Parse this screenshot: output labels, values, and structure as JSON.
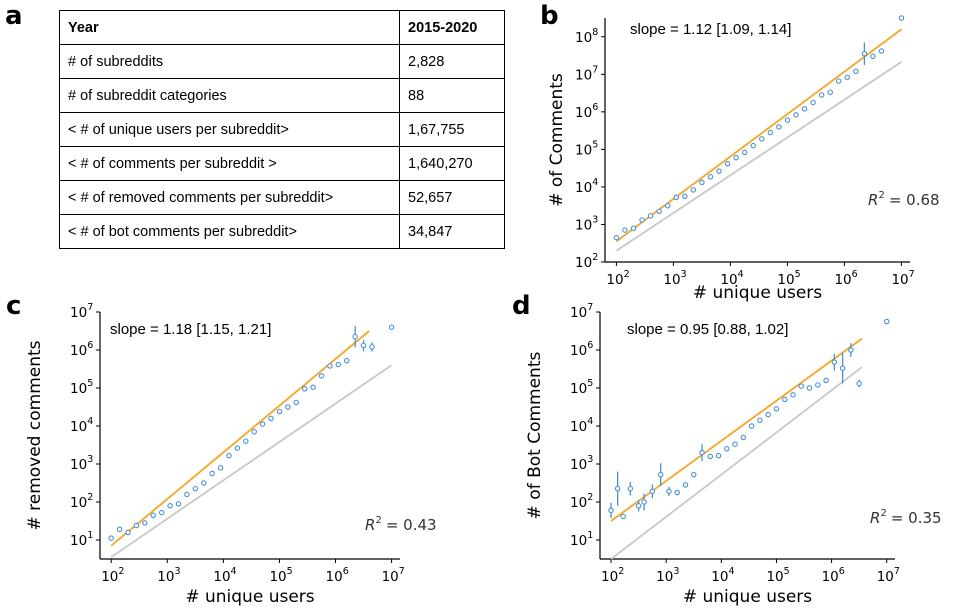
{
  "panel_labels": {
    "a": "a",
    "b": "b",
    "c": "c",
    "d": "d"
  },
  "table": {
    "header": [
      "Year",
      "2015-2020"
    ],
    "rows": [
      [
        "# of subreddits",
        "2,828"
      ],
      [
        "# of subreddit categories",
        "88"
      ],
      [
        "< # of unique users per subreddit>",
        "1,67,755"
      ],
      [
        "< # of comments per subreddit >",
        "1,640,270"
      ],
      [
        "< # of removed comments per subreddit>",
        "52,657"
      ],
      [
        "< # of bot comments per subreddit>",
        "34,847"
      ]
    ]
  },
  "colors": {
    "fit": "#f5a623",
    "reference": "#c8c8c8",
    "points": "#4a90d9"
  },
  "chart_data": [
    {
      "id": "b",
      "type": "scatter",
      "scale": "log-log",
      "xlabel": "# unique users",
      "ylabel": "# of Comments",
      "xlim_exp": [
        1.8,
        7.15
      ],
      "ylim_exp": [
        2.0,
        8.5
      ],
      "xticks_exp": [
        2,
        3,
        4,
        5,
        6,
        7
      ],
      "yticks_exp": [
        2,
        3,
        4,
        5,
        6,
        7,
        8
      ],
      "slope_text": "slope = 1.12 [1.09, 1.14]",
      "r2_label": "R",
      "r2_value": "= 0.68",
      "fit_line": {
        "x_exp": [
          2.0,
          7.0
        ],
        "y_exp": [
          2.55,
          8.2
        ]
      },
      "ref_line": {
        "x_exp": [
          2.0,
          7.0
        ],
        "y_exp": [
          2.3,
          7.33
        ]
      },
      "points": [
        {
          "x": 2.0,
          "y": 2.65
        },
        {
          "x": 2.15,
          "y": 2.85
        },
        {
          "x": 2.3,
          "y": 2.9
        },
        {
          "x": 2.45,
          "y": 3.12
        },
        {
          "x": 2.6,
          "y": 3.23
        },
        {
          "x": 2.75,
          "y": 3.35
        },
        {
          "x": 2.9,
          "y": 3.5
        },
        {
          "x": 3.05,
          "y": 3.72
        },
        {
          "x": 3.2,
          "y": 3.75
        },
        {
          "x": 3.35,
          "y": 3.92
        },
        {
          "x": 3.5,
          "y": 4.12
        },
        {
          "x": 3.65,
          "y": 4.27
        },
        {
          "x": 3.8,
          "y": 4.42
        },
        {
          "x": 3.95,
          "y": 4.62
        },
        {
          "x": 4.1,
          "y": 4.78
        },
        {
          "x": 4.25,
          "y": 4.92
        },
        {
          "x": 4.4,
          "y": 5.1
        },
        {
          "x": 4.55,
          "y": 5.28
        },
        {
          "x": 4.7,
          "y": 5.45
        },
        {
          "x": 4.85,
          "y": 5.6
        },
        {
          "x": 5.0,
          "y": 5.78
        },
        {
          "x": 5.15,
          "y": 5.92
        },
        {
          "x": 5.3,
          "y": 6.08
        },
        {
          "x": 5.45,
          "y": 6.25
        },
        {
          "x": 5.6,
          "y": 6.45
        },
        {
          "x": 5.75,
          "y": 6.52
        },
        {
          "x": 5.9,
          "y": 6.82
        },
        {
          "x": 6.05,
          "y": 6.92
        },
        {
          "x": 6.2,
          "y": 7.08
        },
        {
          "x": 6.35,
          "y": 7.55,
          "err": 0.3
        },
        {
          "x": 6.5,
          "y": 7.48
        },
        {
          "x": 6.65,
          "y": 7.62
        },
        {
          "x": 7.0,
          "y": 8.5
        }
      ]
    },
    {
      "id": "c",
      "type": "scatter",
      "scale": "log-log",
      "xlabel": "# unique users",
      "ylabel": "# removed comments",
      "xlim_exp": [
        1.8,
        7.15
      ],
      "ylim_exp": [
        0.5,
        7.0
      ],
      "xticks_exp": [
        2,
        3,
        4,
        5,
        6,
        7
      ],
      "yticks_exp": [
        1,
        2,
        3,
        4,
        5,
        6,
        7
      ],
      "slope_text": "slope = 1.18 [1.15, 1.21]",
      "r2_label": "R",
      "r2_value": "= 0.43",
      "fit_line": {
        "x_exp": [
          2.0,
          6.6
        ],
        "y_exp": [
          0.85,
          6.5
        ]
      },
      "ref_line": {
        "x_exp": [
          2.0,
          7.0
        ],
        "y_exp": [
          0.55,
          5.6
        ]
      },
      "points": [
        {
          "x": 2.0,
          "y": 1.05
        },
        {
          "x": 2.15,
          "y": 1.28
        },
        {
          "x": 2.3,
          "y": 1.2
        },
        {
          "x": 2.45,
          "y": 1.38
        },
        {
          "x": 2.6,
          "y": 1.45
        },
        {
          "x": 2.75,
          "y": 1.65
        },
        {
          "x": 2.9,
          "y": 1.72
        },
        {
          "x": 3.05,
          "y": 1.9
        },
        {
          "x": 3.2,
          "y": 1.95
        },
        {
          "x": 3.35,
          "y": 2.2
        },
        {
          "x": 3.5,
          "y": 2.35
        },
        {
          "x": 3.65,
          "y": 2.5
        },
        {
          "x": 3.8,
          "y": 2.75
        },
        {
          "x": 3.95,
          "y": 2.9
        },
        {
          "x": 4.1,
          "y": 3.22
        },
        {
          "x": 4.25,
          "y": 3.42
        },
        {
          "x": 4.4,
          "y": 3.6
        },
        {
          "x": 4.55,
          "y": 3.85
        },
        {
          "x": 4.7,
          "y": 4.05
        },
        {
          "x": 4.85,
          "y": 4.2
        },
        {
          "x": 5.0,
          "y": 4.38
        },
        {
          "x": 5.15,
          "y": 4.5
        },
        {
          "x": 5.3,
          "y": 4.62
        },
        {
          "x": 5.45,
          "y": 4.98
        },
        {
          "x": 5.6,
          "y": 5.02
        },
        {
          "x": 5.75,
          "y": 5.32
        },
        {
          "x": 5.9,
          "y": 5.58
        },
        {
          "x": 6.05,
          "y": 5.62
        },
        {
          "x": 6.2,
          "y": 5.72
        },
        {
          "x": 6.35,
          "y": 6.35,
          "err": 0.28
        },
        {
          "x": 6.5,
          "y": 6.12,
          "err": 0.15
        },
        {
          "x": 6.65,
          "y": 6.08,
          "err": 0.12
        },
        {
          "x": 7.0,
          "y": 6.6
        }
      ]
    },
    {
      "id": "d",
      "type": "scatter",
      "scale": "log-log",
      "xlabel": "# unique users",
      "ylabel": "# of Bot Comments",
      "xlim_exp": [
        1.8,
        7.15
      ],
      "ylim_exp": [
        0.5,
        7.0
      ],
      "xticks_exp": [
        2,
        3,
        4,
        5,
        6,
        7
      ],
      "yticks_exp": [
        1,
        2,
        3,
        4,
        5,
        6,
        7
      ],
      "slope_text": "slope = 0.95 [0.88, 1.02]",
      "r2_label": "R",
      "r2_value": "= 0.35",
      "fit_line": {
        "x_exp": [
          2.0,
          6.55
        ],
        "y_exp": [
          1.5,
          6.3
        ]
      },
      "ref_line": {
        "x_exp": [
          2.0,
          6.55
        ],
        "y_exp": [
          0.5,
          5.55
        ]
      },
      "points": [
        {
          "x": 2.0,
          "y": 1.78,
          "err": 0.2
        },
        {
          "x": 2.12,
          "y": 2.35,
          "err": 0.45
        },
        {
          "x": 2.22,
          "y": 1.62
        },
        {
          "x": 2.35,
          "y": 2.35,
          "err": 0.18
        },
        {
          "x": 2.5,
          "y": 1.9,
          "err": 0.15
        },
        {
          "x": 2.6,
          "y": 2.0,
          "err": 0.22
        },
        {
          "x": 2.75,
          "y": 2.28,
          "err": 0.18
        },
        {
          "x": 2.9,
          "y": 2.72,
          "err": 0.3
        },
        {
          "x": 3.05,
          "y": 2.28,
          "err": 0.12
        },
        {
          "x": 3.2,
          "y": 2.25
        },
        {
          "x": 3.35,
          "y": 2.45
        },
        {
          "x": 3.5,
          "y": 2.72
        },
        {
          "x": 3.65,
          "y": 3.3,
          "err": 0.22
        },
        {
          "x": 3.8,
          "y": 3.2
        },
        {
          "x": 3.95,
          "y": 3.22
        },
        {
          "x": 4.1,
          "y": 3.4
        },
        {
          "x": 4.25,
          "y": 3.52
        },
        {
          "x": 4.4,
          "y": 3.7
        },
        {
          "x": 4.55,
          "y": 4.0
        },
        {
          "x": 4.7,
          "y": 4.15
        },
        {
          "x": 4.85,
          "y": 4.3
        },
        {
          "x": 5.0,
          "y": 4.45
        },
        {
          "x": 5.15,
          "y": 4.7
        },
        {
          "x": 5.3,
          "y": 4.82
        },
        {
          "x": 5.45,
          "y": 5.05
        },
        {
          "x": 5.6,
          "y": 5.0
        },
        {
          "x": 5.75,
          "y": 5.08
        },
        {
          "x": 5.9,
          "y": 5.2
        },
        {
          "x": 6.05,
          "y": 5.68,
          "err": 0.22
        },
        {
          "x": 6.2,
          "y": 5.52,
          "err": 0.4
        },
        {
          "x": 6.35,
          "y": 6.0,
          "err": 0.18
        },
        {
          "x": 6.5,
          "y": 5.12,
          "err": 0.1
        },
        {
          "x": 7.0,
          "y": 6.75
        }
      ]
    }
  ]
}
